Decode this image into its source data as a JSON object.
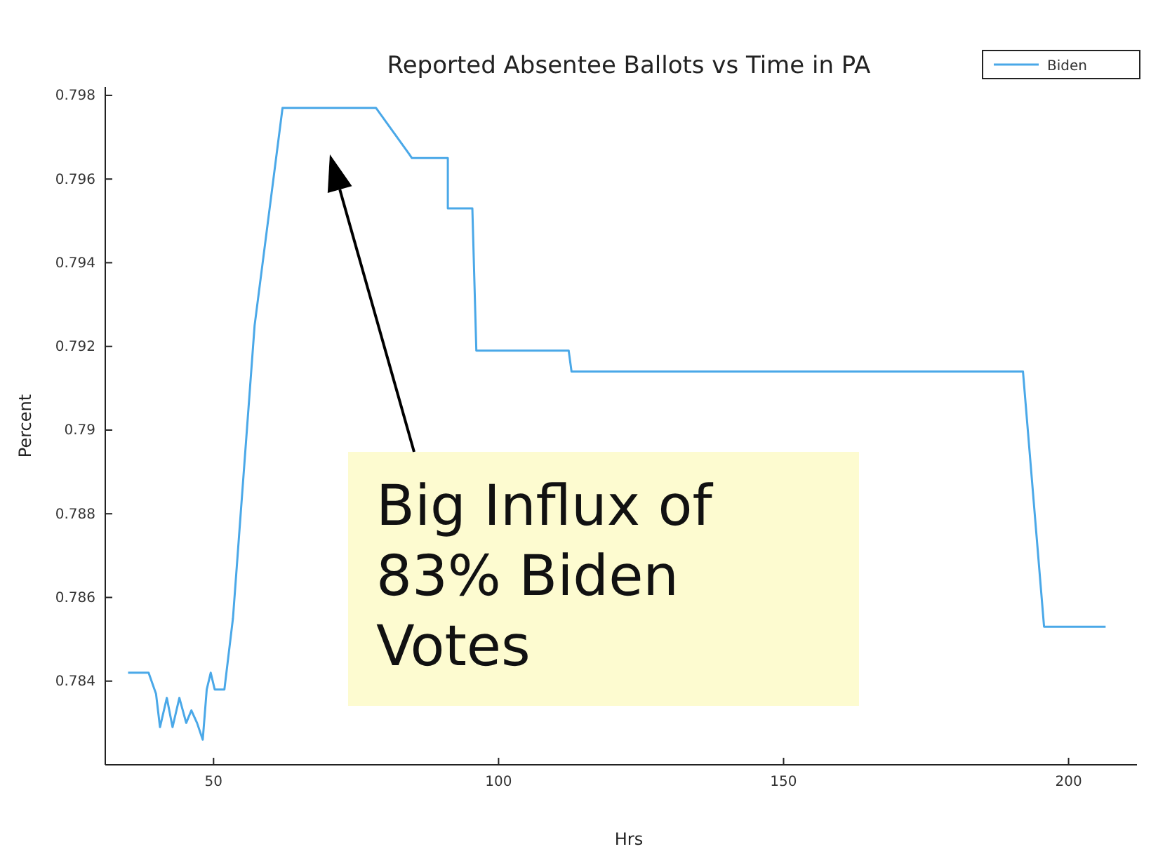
{
  "chart_data": {
    "type": "line",
    "title": "Reported Absentee Ballots vs Time in PA",
    "xlabel": "Hrs",
    "ylabel": "Percent",
    "xlim": [
      31,
      212
    ],
    "xticks": [
      50,
      100,
      150,
      200
    ],
    "ylim": [
      0.782,
      0.7982
    ],
    "yticks": [
      0.784,
      0.786,
      0.788,
      0.79,
      0.792,
      0.794,
      0.796,
      0.798
    ],
    "grid": false,
    "legend": "top right",
    "marker": "none",
    "line_style": "solid",
    "annotations": [
      "Big Influx of 83% Biden Votes"
    ],
    "series": [
      {
        "name": "Biden",
        "color": "#4aa8e8",
        "x": [
          35,
          38.6,
          39.9,
          40.6,
          41.8,
          42.8,
          44,
          45.2,
          46.1,
          47.1,
          48.1,
          48.8,
          49.5,
          50.2,
          51.9,
          53.4,
          57.2,
          62.1,
          78.5,
          84.3,
          84.8,
          91.1,
          91.1,
          95.4,
          96.1,
          97.8,
          112.3,
          112.8,
          167.9,
          168.4,
          192,
          195.7,
          206.5
        ],
        "values": [
          0.7842,
          0.7842,
          0.7837,
          0.7829,
          0.7836,
          0.7829,
          0.7836,
          0.783,
          0.7833,
          0.783,
          0.7826,
          0.7838,
          0.7842,
          0.7838,
          0.7838,
          0.7855,
          0.7925,
          0.7977,
          0.7977,
          0.7966,
          0.7965,
          0.7965,
          0.7953,
          0.7953,
          0.7919,
          0.7919,
          0.7919,
          0.7914,
          0.7914,
          0.7914,
          0.7914,
          0.7853,
          0.7853
        ]
      }
    ]
  }
}
